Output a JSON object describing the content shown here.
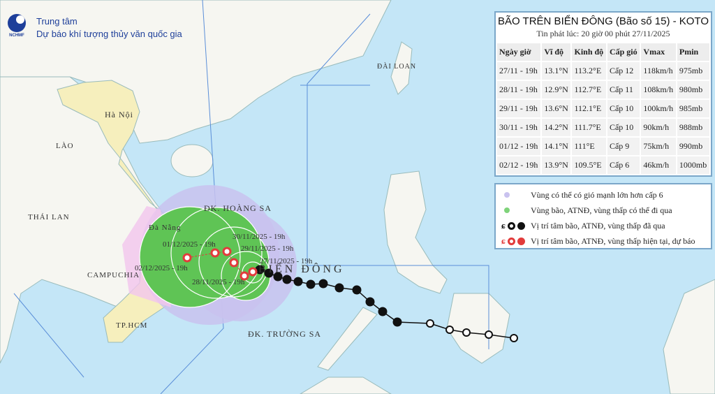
{
  "header": {
    "org_line1": "Trung tâm",
    "org_line2": "Dự báo khí tượng thủy văn quốc gia",
    "logo_text": "NCHMF"
  },
  "panel": {
    "title": "BÃO TRÊN BIỂN ĐÔNG (Bão số 15) - KOTO",
    "issued": "Tin phát lúc: 20 giờ 00 phút 27/11/2025",
    "columns": [
      "Ngày giờ",
      "Vĩ độ",
      "Kinh độ",
      "Cấp gió",
      "Vmax",
      "Pmin"
    ],
    "rows": [
      [
        "27/11 - 19h",
        "13.1°N",
        "113.2°E",
        "Cấp 12",
        "118km/h",
        "975mb"
      ],
      [
        "28/11 - 19h",
        "12.9°N",
        "112.7°E",
        "Cấp 11",
        "108km/h",
        "980mb"
      ],
      [
        "29/11 - 19h",
        "13.6°N",
        "112.1°E",
        "Cấp 10",
        "100km/h",
        "985mb"
      ],
      [
        "30/11 - 19h",
        "14.2°N",
        "111.7°E",
        "Cấp 10",
        "90km/h",
        "988mb"
      ],
      [
        "01/12 - 19h",
        "14.1°N",
        "111°E",
        "Cấp 9",
        "75km/h",
        "990mb"
      ],
      [
        "02/12 - 19h",
        "13.9°N",
        "109.5°E",
        "Cấp 6",
        "46km/h",
        "1000mb"
      ]
    ]
  },
  "legend": [
    {
      "text": "Vùng có thể có gió mạnh lớn hơn cấp 6",
      "color": "#c9c2ef"
    },
    {
      "text": "Vùng bão, ATNĐ, vùng thấp có thể đi qua",
      "color": "#7fd37a"
    },
    {
      "text": "Vị trí tâm bão, ATNĐ, vùng thấp đã qua",
      "color": "#111111"
    },
    {
      "text": "Vị trí tâm bão, ATNĐ, vùng thấp hiện tại, dự báo",
      "color": "#e23b3b"
    }
  ],
  "places": {
    "hanoi": "Hà Nội",
    "lao": "LÀO",
    "thailan": "THÁI LAN",
    "campuchia": "CAMPUCHIA",
    "danang": "Đà Nẵng",
    "tphcm": "TP.HCM",
    "dailoan": "ĐÀI LOAN",
    "hoangsa": "ĐK. HOÀNG SA",
    "truongsa": "ĐK. TRƯỜNG SA",
    "biendong": "BIỂN ĐÔNG"
  },
  "forecast_labels": [
    "27/11/2025 - 19h",
    "28/11/2025 - 19h",
    "29/11/2025 - 19h",
    "30/11/2025 - 19h",
    "01/12/2025 - 19h",
    "02/12/2025 - 19h"
  ]
}
